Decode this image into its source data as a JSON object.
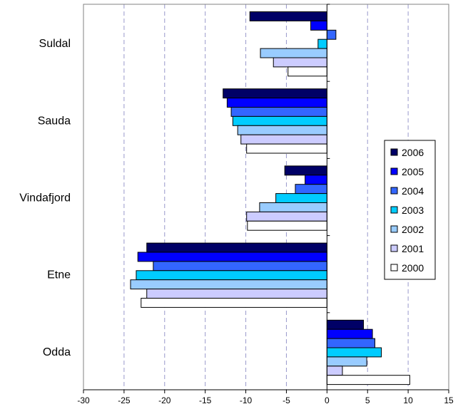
{
  "chart_data": {
    "type": "bar",
    "orientation": "horizontal",
    "categories": [
      "Suldal",
      "Sauda",
      "Vindafjord",
      "Etne",
      "Odda"
    ],
    "series": [
      {
        "name": "2006",
        "color": "#000066",
        "values": [
          -9.5,
          -12.8,
          -5.2,
          -22.2,
          4.5
        ]
      },
      {
        "name": "2005",
        "color": "#0000ff",
        "values": [
          -2.0,
          -12.3,
          -2.7,
          -23.3,
          5.6
        ]
      },
      {
        "name": "2004",
        "color": "#3366ff",
        "values": [
          1.1,
          -11.8,
          -3.9,
          -21.4,
          5.9
        ]
      },
      {
        "name": "2003",
        "color": "#00ccff",
        "values": [
          -1.1,
          -11.6,
          -6.3,
          -23.5,
          6.7
        ]
      },
      {
        "name": "2002",
        "color": "#99ccff",
        "values": [
          -8.2,
          -11.0,
          -8.3,
          -24.2,
          4.9
        ]
      },
      {
        "name": "2001",
        "color": "#ccccff",
        "values": [
          -6.6,
          -10.6,
          -9.9,
          -22.2,
          1.9
        ]
      },
      {
        "name": "2000",
        "color": "#ffffff",
        "values": [
          -4.8,
          -9.9,
          -9.8,
          -22.9,
          10.2
        ]
      }
    ],
    "xlim": [
      -30,
      15
    ],
    "xticks": [
      "-30",
      "-25",
      "-20",
      "-15",
      "-10",
      "-5",
      "0",
      "5",
      "10",
      "15"
    ],
    "grid": "vertical",
    "legend": "right",
    "title": "",
    "xlabel": "",
    "ylabel": ""
  }
}
